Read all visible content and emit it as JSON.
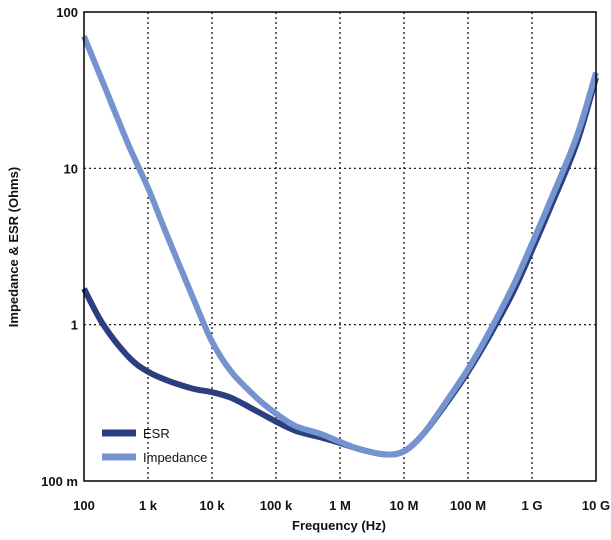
{
  "chart_data": {
    "type": "line",
    "title": "",
    "xlabel": "Frequency (Hz)",
    "ylabel": "Impedance & ESR (Ohms)",
    "x_scale": "log",
    "y_scale": "log",
    "xlim": [
      100,
      10000000000
    ],
    "ylim": [
      0.1,
      100
    ],
    "x_ticks": [
      {
        "value": 100,
        "label": "100"
      },
      {
        "value": 1000,
        "label": "1 k"
      },
      {
        "value": 10000,
        "label": "10 k"
      },
      {
        "value": 100000,
        "label": "100 k"
      },
      {
        "value": 1000000,
        "label": "1 M"
      },
      {
        "value": 10000000,
        "label": "10 M"
      },
      {
        "value": 100000000,
        "label": "100 M"
      },
      {
        "value": 1000000000,
        "label": "1 G"
      },
      {
        "value": 10000000000,
        "label": "10 G"
      }
    ],
    "y_ticks": [
      {
        "value": 0.1,
        "label": "100 m"
      },
      {
        "value": 1,
        "label": "1"
      },
      {
        "value": 10,
        "label": "10"
      },
      {
        "value": 100,
        "label": "100"
      }
    ],
    "grid": true,
    "legend_position": "bottom-left",
    "series": [
      {
        "name": "ESR",
        "color": "#2b3f7e",
        "x": [
          100,
          200,
          500,
          1000,
          2000,
          5000,
          10000,
          20000,
          50000,
          100000,
          200000,
          500000,
          1000000,
          2000000,
          5000000,
          10000000,
          20000000,
          50000000,
          100000000,
          200000000,
          500000000,
          1000000000,
          2000000000,
          5000000000,
          10000000000
        ],
        "y": [
          1.7,
          1.0,
          0.62,
          0.5,
          0.44,
          0.39,
          0.37,
          0.34,
          0.28,
          0.24,
          0.21,
          0.19,
          0.175,
          0.16,
          0.148,
          0.155,
          0.2,
          0.33,
          0.5,
          0.8,
          1.6,
          3.0,
          5.8,
          14.5,
          38
        ]
      },
      {
        "name": "Impedance",
        "color": "#7594cf",
        "x": [
          100,
          200,
          500,
          1000,
          2000,
          5000,
          10000,
          20000,
          50000,
          100000,
          200000,
          500000,
          1000000,
          2000000,
          5000000,
          10000000,
          20000000,
          50000000,
          100000000,
          200000000,
          500000000,
          1000000000,
          2000000000,
          5000000000,
          10000000000
        ],
        "y": [
          70,
          35,
          14,
          7.5,
          3.7,
          1.5,
          0.78,
          0.5,
          0.34,
          0.27,
          0.225,
          0.2,
          0.178,
          0.16,
          0.148,
          0.155,
          0.2,
          0.34,
          0.52,
          0.85,
          1.75,
          3.3,
          6.4,
          16,
          41
        ]
      }
    ]
  }
}
